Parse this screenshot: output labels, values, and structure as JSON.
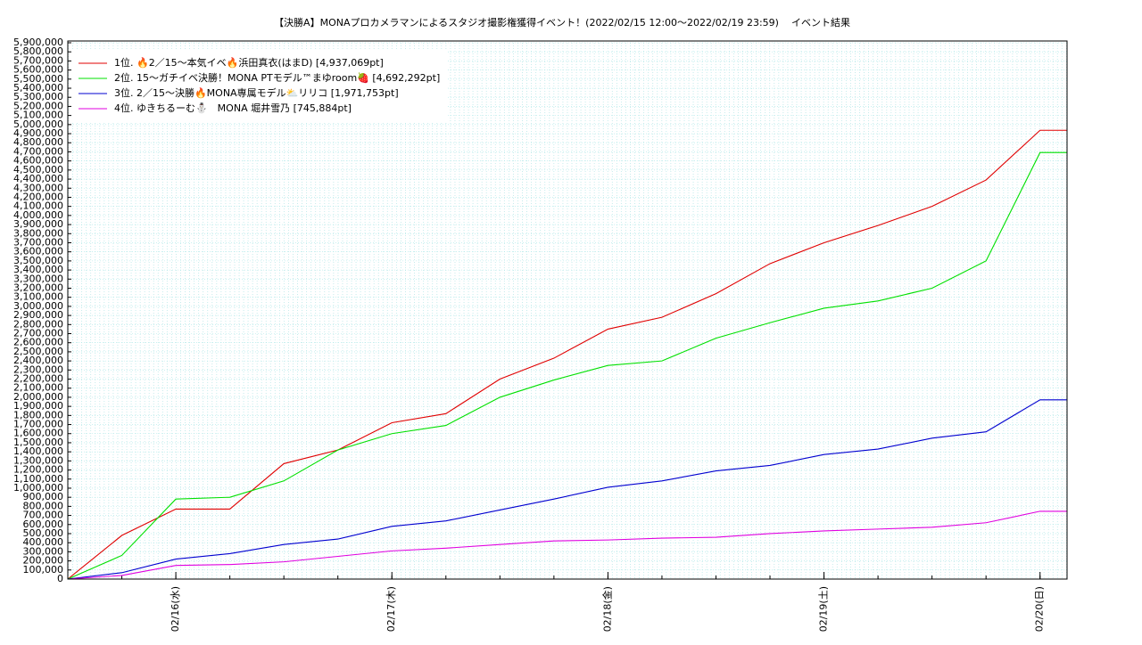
{
  "chart_data": {
    "type": "line",
    "title": "【決勝A】MONAプロカメラマンによるスタジオ撮影権獲得イベント！(2022/02/15 12:00～2022/02/19 23:59)",
    "subtitle": "イベント結果",
    "x": [
      "02/15 12:00",
      "02/15 18:00",
      "02/16 00:00",
      "02/16 06:00",
      "02/16 12:00",
      "02/16 18:00",
      "02/17 00:00",
      "02/17 06:00",
      "02/17 12:00",
      "02/17 18:00",
      "02/18 00:00",
      "02/18 06:00",
      "02/18 12:00",
      "02/18 18:00",
      "02/19 00:00",
      "02/19 06:00",
      "02/19 12:00",
      "02/19 18:00",
      "02/20 00:00",
      "02/20 03:00"
    ],
    "xlim": [
      "02/15 12:00",
      "02/20 03:00"
    ],
    "xticks": [
      {
        "value": "02/16 00:00",
        "label": "02/16(水)"
      },
      {
        "value": "02/17 00:00",
        "label": "02/17(木)"
      },
      {
        "value": "02/18 00:00",
        "label": "02/18(金)"
      },
      {
        "value": "02/19 00:00",
        "label": "02/19(土)"
      },
      {
        "value": "02/20 00:00",
        "label": "02/20(日)"
      }
    ],
    "ylim": [
      0,
      5900000
    ],
    "yticks": [
      0,
      {
        "value": 100000,
        "label": "100,000"
      },
      {
        "value": 200000,
        "label": "200,000"
      },
      {
        "value": 300000,
        "label": "300,000"
      },
      {
        "value": 400000,
        "label": "400,000"
      },
      {
        "value": 500000,
        "label": "500,000"
      },
      {
        "value": 600000,
        "label": "600,000"
      },
      {
        "value": 700000,
        "label": "700,000"
      },
      {
        "value": 800000,
        "label": "800,000"
      },
      {
        "value": 900000,
        "label": "900,000"
      },
      {
        "value": 1000000,
        "label": "1,000,000"
      },
      {
        "value": 1100000,
        "label": "1,100,000"
      },
      {
        "value": 1200000,
        "label": "1,200,000"
      },
      {
        "value": 1300000,
        "label": "1,300,000"
      },
      {
        "value": 1400000,
        "label": "1,400,000"
      },
      {
        "value": 1500000,
        "label": "1,500,000"
      },
      {
        "value": 1600000,
        "label": "1,600,000"
      },
      {
        "value": 1700000,
        "label": "1,700,000"
      },
      {
        "value": 1800000,
        "label": "1,800,000"
      },
      {
        "value": 1900000,
        "label": "1,900,000"
      },
      {
        "value": 2000000,
        "label": "2,000,000"
      },
      {
        "value": 2100000,
        "label": "2,100,000"
      },
      {
        "value": 2200000,
        "label": "2,200,000"
      },
      {
        "value": 2300000,
        "label": "2,300,000"
      },
      {
        "value": 2400000,
        "label": "2,400,000"
      },
      {
        "value": 2500000,
        "label": "2,500,000"
      },
      {
        "value": 2600000,
        "label": "2,600,000"
      },
      {
        "value": 2700000,
        "label": "2,700,000"
      },
      {
        "value": 2800000,
        "label": "2,800,000"
      },
      {
        "value": 2900000,
        "label": "2,900,000"
      },
      {
        "value": 3000000,
        "label": "3,000,000"
      },
      {
        "value": 3100000,
        "label": "3,100,000"
      },
      {
        "value": 3200000,
        "label": "3,200,000"
      },
      {
        "value": 3300000,
        "label": "3,300,000"
      },
      {
        "value": 3400000,
        "label": "3,400,000"
      },
      {
        "value": 3500000,
        "label": "3,500,000"
      },
      {
        "value": 3600000,
        "label": "3,600,000"
      },
      {
        "value": 3700000,
        "label": "3,700,000"
      },
      {
        "value": 3800000,
        "label": "3,800,000"
      },
      {
        "value": 3900000,
        "label": "3,900,000"
      },
      {
        "value": 4000000,
        "label": "4,000,000"
      },
      {
        "value": 4100000,
        "label": "4,100,000"
      },
      {
        "value": 4200000,
        "label": "4,200,000"
      },
      {
        "value": 4300000,
        "label": "4,300,000"
      },
      {
        "value": 4400000,
        "label": "4,400,000"
      },
      {
        "value": 4500000,
        "label": "4,500,000"
      },
      {
        "value": 4600000,
        "label": "4,600,000"
      },
      {
        "value": 4700000,
        "label": "4,700,000"
      },
      {
        "value": 4800000,
        "label": "4,800,000"
      },
      {
        "value": 4900000,
        "label": "4,900,000"
      },
      {
        "value": 5000000,
        "label": "5,000,000"
      },
      {
        "value": 5100000,
        "label": "5,100,000"
      },
      {
        "value": 5200000,
        "label": "5,200,000"
      },
      {
        "value": 5300000,
        "label": "5,300,000"
      },
      {
        "value": 5400000,
        "label": "5,400,000"
      },
      {
        "value": 5500000,
        "label": "5,500,000"
      },
      {
        "value": 5600000,
        "label": "5,600,000"
      },
      {
        "value": 5700000,
        "label": "5,700,000"
      },
      {
        "value": 5800000,
        "label": "5,800,000"
      },
      {
        "value": 5900000,
        "label": "5,900,000"
      }
    ],
    "grid": true,
    "legend": "upper left",
    "series": [
      {
        "name": "1位. 🔥2／15～本気イベ🔥浜田真衣(はまD) [4,937,069pt]",
        "color": "#e00000",
        "values": [
          0,
          480000,
          770000,
          770000,
          1270000,
          1420000,
          1720000,
          1820000,
          2200000,
          2430000,
          2750000,
          2880000,
          3140000,
          3470000,
          3700000,
          3890000,
          4100000,
          4390000,
          4937069,
          4937069
        ]
      },
      {
        "name": "2位. 15～ガチイベ決勝！MONA PTモデル™まゆroom🍓 [4,692,292pt]",
        "color": "#00e000",
        "values": [
          0,
          260000,
          880000,
          900000,
          1080000,
          1420000,
          1600000,
          1690000,
          2000000,
          2190000,
          2350000,
          2400000,
          2650000,
          2820000,
          2980000,
          3060000,
          3200000,
          3500000,
          4692292,
          4692292
        ]
      },
      {
        "name": "3位. 2／15～決勝🔥MONA専属モデル⛅リリコ [1,971,753pt]",
        "color": "#0000d0",
        "values": [
          0,
          70000,
          220000,
          280000,
          380000,
          440000,
          580000,
          640000,
          760000,
          880000,
          1010000,
          1080000,
          1190000,
          1250000,
          1370000,
          1430000,
          1550000,
          1620000,
          1971753,
          1971753
        ]
      },
      {
        "name": "4位. ゆきちるーむ⛄　MONA 堀井雪乃 [745,884pt]",
        "color": "#e000e0",
        "values": [
          0,
          40000,
          150000,
          160000,
          190000,
          250000,
          310000,
          340000,
          380000,
          420000,
          430000,
          450000,
          460000,
          500000,
          530000,
          550000,
          570000,
          620000,
          745884,
          745884
        ]
      }
    ]
  }
}
